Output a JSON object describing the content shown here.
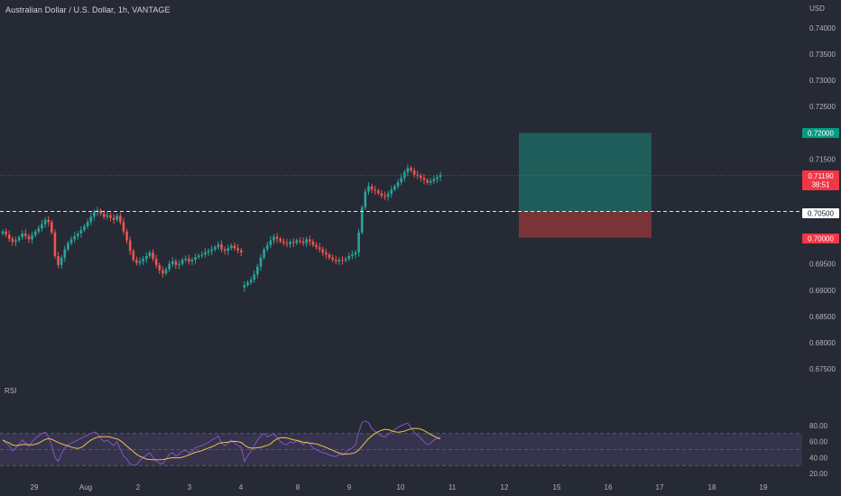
{
  "header": {
    "title": "Australian Dollar / U.S. Dollar, 1h, VANTAGE",
    "currency": "USD"
  },
  "rsi_panel": {
    "label": "RSI"
  },
  "price_tags": {
    "target": "0.72000",
    "current": "0.71190",
    "countdown": "38:51",
    "entry": "0.70500",
    "stop": "0.70000"
  },
  "colors": {
    "background": "#262a35",
    "bull": "#26a69a",
    "bear": "#ef5350",
    "profit_zone": "#1e5d5a",
    "loss_zone": "#7a3438",
    "rsi_line": "#7e57c2",
    "rsi_ma": "#f0c24b",
    "rsi_band": "#3a3550",
    "current_tag": "#f23645",
    "target_tag": "#089981"
  },
  "chart_data": [
    {
      "type": "candlestick",
      "symbol": "AUDUSD",
      "timeframe": "1h",
      "y_ticks": [
        "0.74000",
        "0.73500",
        "0.73000",
        "0.72500",
        "0.72000",
        "0.71500",
        "0.71000",
        "0.70500",
        "0.70000",
        "0.69500",
        "0.69000",
        "0.68500",
        "0.68000",
        "0.67500"
      ],
      "ylim": [
        0.6725,
        0.7425
      ],
      "x_ticks": [
        "29",
        "Aug",
        "2",
        "3",
        "4",
        "8",
        "9",
        "10",
        "11",
        "12",
        "15",
        "16",
        "17",
        "18",
        "19"
      ],
      "close_series": [
        0.7012,
        0.7006,
        0.6998,
        0.6992,
        0.6995,
        0.7001,
        0.7008,
        0.7003,
        0.6997,
        0.7005,
        0.7012,
        0.7018,
        0.7026,
        0.7034,
        0.703,
        0.701,
        0.6965,
        0.6948,
        0.6962,
        0.6978,
        0.699,
        0.6997,
        0.7003,
        0.7008,
        0.7015,
        0.7022,
        0.703,
        0.704,
        0.7049,
        0.7052,
        0.7046,
        0.704,
        0.7043,
        0.7038,
        0.7034,
        0.7042,
        0.703,
        0.7012,
        0.6995,
        0.6975,
        0.6958,
        0.6952,
        0.6955,
        0.696,
        0.6965,
        0.6972,
        0.696,
        0.6948,
        0.6938,
        0.6932,
        0.694,
        0.695,
        0.6955,
        0.6948,
        0.695,
        0.6958,
        0.696,
        0.6955,
        0.6958,
        0.6963,
        0.6966,
        0.6968,
        0.6972,
        0.6975,
        0.6978,
        0.6982,
        0.6987,
        0.6978,
        0.6975,
        0.698,
        0.6985,
        0.698,
        0.6976,
        0.6972,
        0.691,
        0.6915,
        0.692,
        0.693,
        0.6945,
        0.6962,
        0.6978,
        0.6986,
        0.6995,
        0.7002,
        0.6998,
        0.6993,
        0.699,
        0.6988,
        0.6992,
        0.699,
        0.6995,
        0.6993,
        0.699,
        0.6997,
        0.6993,
        0.6986,
        0.6982,
        0.6978,
        0.6972,
        0.6968,
        0.6962,
        0.6958,
        0.6955,
        0.6958,
        0.6957,
        0.696,
        0.6965,
        0.6968,
        0.6972,
        0.701,
        0.7058,
        0.7088,
        0.7098,
        0.7092,
        0.709,
        0.7085,
        0.708,
        0.7078,
        0.7084,
        0.7092,
        0.7098,
        0.7106,
        0.7114,
        0.7125,
        0.7133,
        0.7128,
        0.712,
        0.7118,
        0.7114,
        0.711,
        0.7105,
        0.7108,
        0.7112,
        0.7116,
        0.7119
      ],
      "series": [
        {
          "name": "",
          "x_start": "2022-07-28",
          "note_free_values_ref": "close_series"
        }
      ],
      "current_price": 0.7119,
      "levels": {
        "target": 0.72,
        "entry": 0.705,
        "stop": 0.7
      }
    },
    {
      "type": "line",
      "title": "RSI",
      "y_ticks": [
        "80.00",
        "60.00",
        "40.00",
        "20.00"
      ],
      "ylim": [
        18,
        88
      ],
      "bands": {
        "upper": 70,
        "middle": 50,
        "lower": 30
      },
      "rsi_values": [
        62,
        58,
        55,
        48,
        52,
        57,
        62,
        58,
        54,
        60,
        64,
        67,
        70,
        72,
        66,
        55,
        40,
        35,
        45,
        52,
        56,
        58,
        60,
        62,
        64,
        66,
        68,
        70,
        72,
        70,
        64,
        60,
        62,
        58,
        55,
        60,
        50,
        42,
        38,
        32,
        30,
        31,
        36,
        40,
        43,
        46,
        40,
        36,
        33,
        32,
        38,
        44,
        46,
        42,
        44,
        48,
        49,
        46,
        48,
        52,
        54,
        55,
        57,
        59,
        62,
        64,
        67,
        58,
        55,
        58,
        62,
        58,
        55,
        53,
        35,
        42,
        48,
        55,
        62,
        67,
        70,
        66,
        68,
        70,
        65,
        60,
        57,
        56,
        60,
        58,
        61,
        59,
        56,
        60,
        57,
        52,
        50,
        48,
        46,
        45,
        43,
        42,
        41,
        44,
        43,
        46,
        50,
        52,
        56,
        72,
        84,
        86,
        84,
        76,
        73,
        70,
        67,
        66,
        69,
        72,
        75,
        78,
        80,
        82,
        83,
        78,
        72,
        68,
        64,
        60,
        56,
        58,
        62,
        64,
        66
      ]
    }
  ]
}
